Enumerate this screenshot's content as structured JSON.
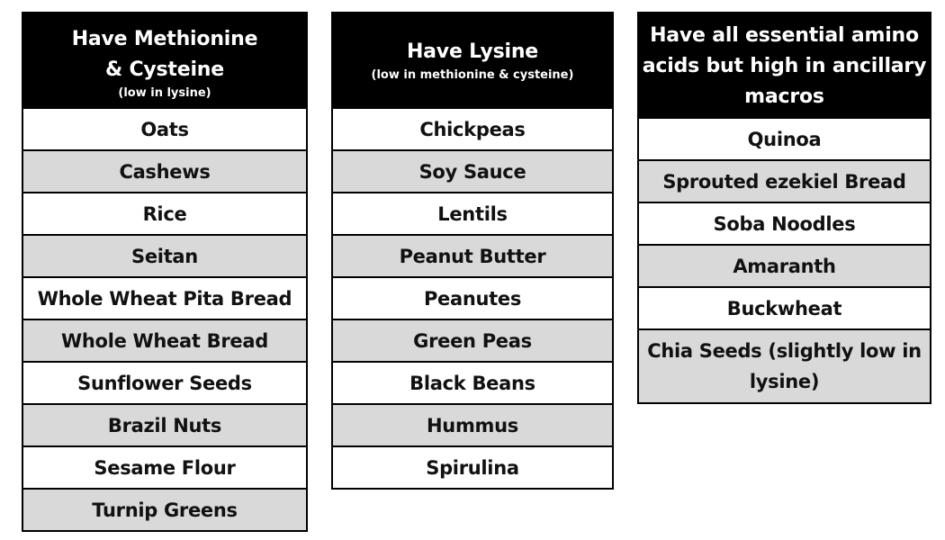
{
  "tables": [
    {
      "title": "Have Methionine\n& Cysteine",
      "subtitle": "(low in lysine)",
      "items": [
        "Oats",
        "Cashews",
        "Rice",
        "Seitan",
        "Whole Wheat Pita Bread",
        "Whole Wheat Bread",
        "Sunflower Seeds",
        "Brazil Nuts",
        "Sesame Flour",
        "Turnip Greens"
      ]
    },
    {
      "title": "Have Lysine",
      "subtitle": "(low in methionine & cysteine)",
      "items": [
        "Chickpeas",
        "Soy Sauce",
        "Lentils",
        "Peanut Butter",
        "Peanutes",
        "Green Peas",
        "Black Beans",
        "Hummus",
        "Spirulina"
      ]
    },
    {
      "title": "Have all essential amino acids but high in ancillary macros",
      "subtitle": "",
      "items": [
        "Quinoa",
        "Sprouted ezekiel Bread",
        "Soba Noodles",
        "Amaranth",
        "Buckwheat",
        "Chia Seeds (slightly low in lysine)"
      ]
    }
  ]
}
